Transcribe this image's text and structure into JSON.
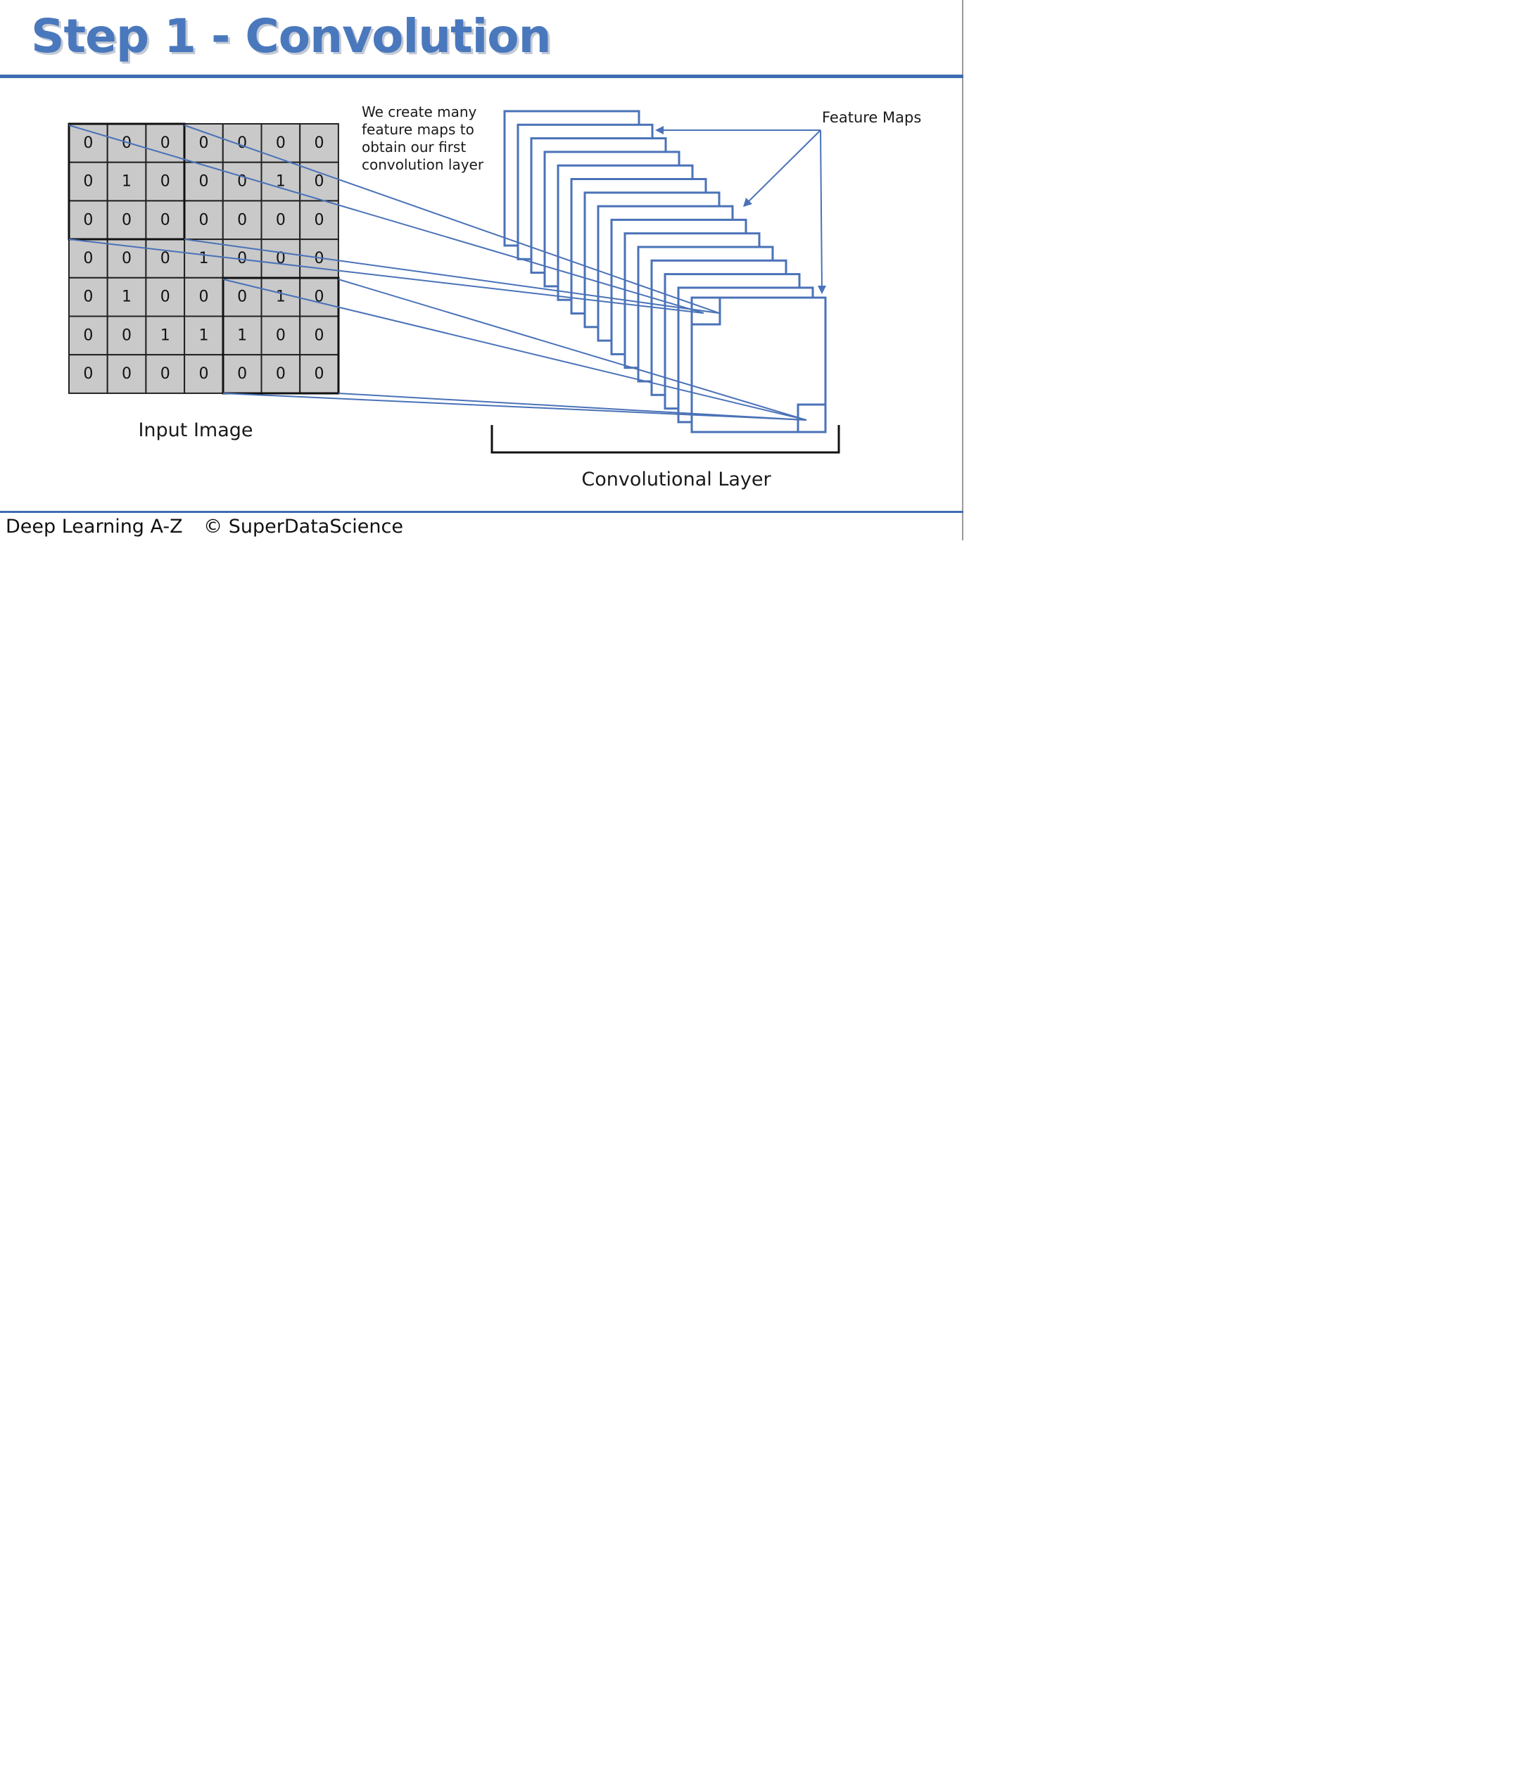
{
  "title": "Step 1 - Convolution",
  "input_image": {
    "label": "Input Image",
    "rows": [
      [
        "0",
        "0",
        "0",
        "0",
        "0",
        "0",
        "0"
      ],
      [
        "0",
        "1",
        "0",
        "0",
        "0",
        "1",
        "0"
      ],
      [
        "0",
        "0",
        "0",
        "0",
        "0",
        "0",
        "0"
      ],
      [
        "0",
        "0",
        "0",
        "1",
        "0",
        "0",
        "0"
      ],
      [
        "0",
        "1",
        "0",
        "0",
        "0",
        "1",
        "0"
      ],
      [
        "0",
        "0",
        "1",
        "1",
        "1",
        "0",
        "0"
      ],
      [
        "0",
        "0",
        "0",
        "0",
        "0",
        "0",
        "0"
      ]
    ]
  },
  "annotation": {
    "lines": [
      "We create many",
      "feature maps to",
      "obtain our first",
      "convolution layer"
    ]
  },
  "feature_maps_label": "Feature Maps",
  "conv_layer_label": "Convolutional Layer",
  "footer": {
    "left": "Deep Learning A-Z",
    "right": "© SuperDataScience"
  },
  "colors": {
    "accent": "#4a78bd",
    "line": "#4a72b8",
    "cell": "#c9c9c9"
  }
}
